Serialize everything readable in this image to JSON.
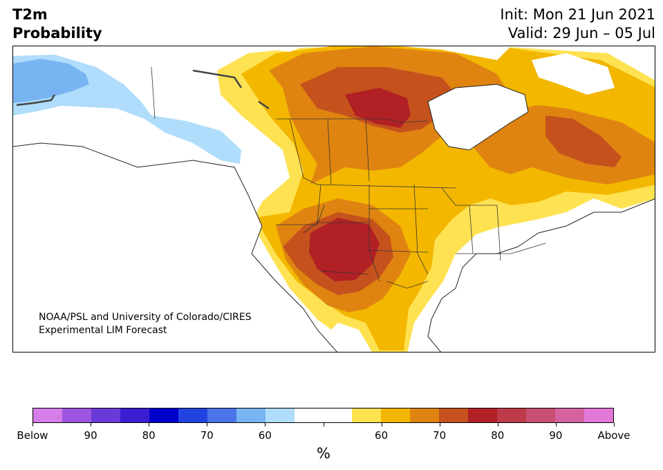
{
  "header": {
    "variable": "T2m",
    "product": "Probability",
    "init": "Init: Mon 21 Jun 2021",
    "valid": "Valid: 29 Jun – 05 Jul"
  },
  "credit": {
    "line1": "NOAA/PSL and University of Colorado/CIRES",
    "line2": "Experimental LIM Forecast"
  },
  "colorbar": {
    "unit": "%",
    "colors": [
      "#d57ee9",
      "#9c55e0",
      "#6a3ad8",
      "#3a1ed2",
      "#0000cd",
      "#2343e0",
      "#4a74e7",
      "#79b4f2",
      "#afddfb",
      "#ffffff",
      "#ffffff",
      "#fee252",
      "#f3b700",
      "#df8411",
      "#c5521c",
      "#b12025",
      "#bd3a48",
      "#c84f72",
      "#d463a0",
      "#e378d7"
    ],
    "labels": [
      "Below",
      "90",
      "80",
      "70",
      "60",
      "",
      "60",
      "70",
      "80",
      "90",
      "Above"
    ]
  },
  "map": {
    "colors": {
      "above_50": "#fee252",
      "above_60": "#f3b700",
      "above_70": "#df8411",
      "above_80": "#c5521c",
      "above_90": "#b12025",
      "below_50": "#afddfb",
      "below_60": "#79b4f2",
      "land": "#ffffff",
      "border": "#333333"
    }
  }
}
